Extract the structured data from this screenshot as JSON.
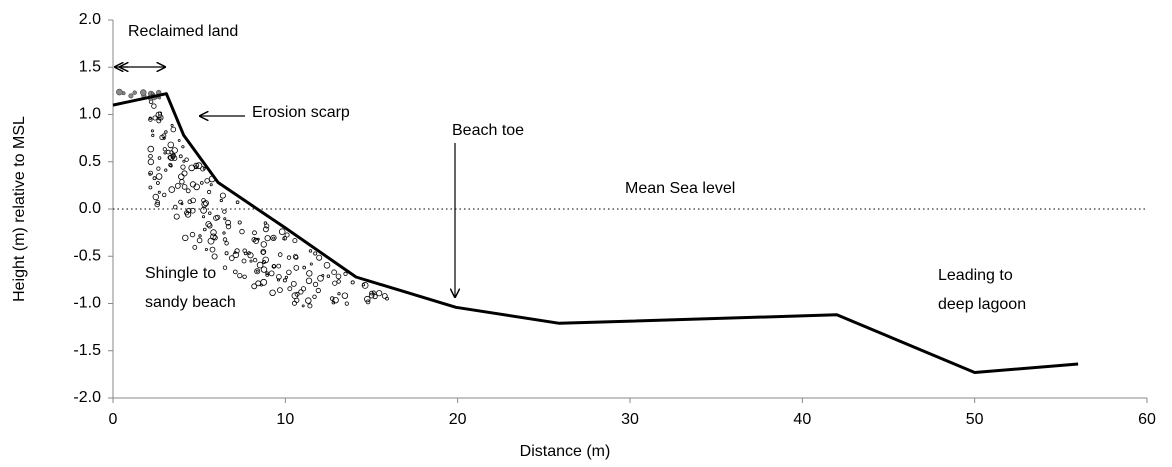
{
  "chart_data": {
    "type": "line",
    "x_label": "Distance (m)",
    "y_label": "Height (m) relative to MSL",
    "x": [
      0,
      3.1,
      4.1,
      6.1,
      10,
      14.1,
      19.9,
      25.9,
      42,
      50,
      56
    ],
    "series": [
      {
        "color": "#000000",
        "values": [
          1.1,
          1.22,
          0.78,
          0.28,
          -0.2,
          -0.72,
          -1.04,
          -1.21,
          -1.12,
          -1.73,
          -1.64
        ]
      }
    ],
    "xlim": [
      0,
      60
    ],
    "xticks": [
      0,
      10,
      20,
      30,
      40,
      50,
      60
    ],
    "ylim": [
      -2,
      2
    ],
    "yticks": [
      {
        "value": -2,
        "label": "-2.0"
      },
      -1.5,
      {
        "value": -1,
        "label": "-1.0"
      },
      -0.5,
      {
        "value": 0,
        "label": "0.0"
      },
      0.5,
      {
        "value": 1,
        "label": "1.0"
      },
      1.5,
      {
        "value": 2,
        "label": "2.0"
      }
    ],
    "reference_line": {
      "value": 0,
      "label": "Mean Sea level"
    },
    "annotations": [
      {
        "lines": [
          "Reclaimed land"
        ]
      },
      {
        "lines": [
          "Erosion scarp"
        ]
      },
      {
        "lines": [
          "Beach toe"
        ]
      },
      {
        "lines": [
          "Shingle to",
          "sandy beach"
        ]
      },
      {
        "lines": [
          "Leading to",
          "deep lagoon"
        ]
      }
    ]
  }
}
